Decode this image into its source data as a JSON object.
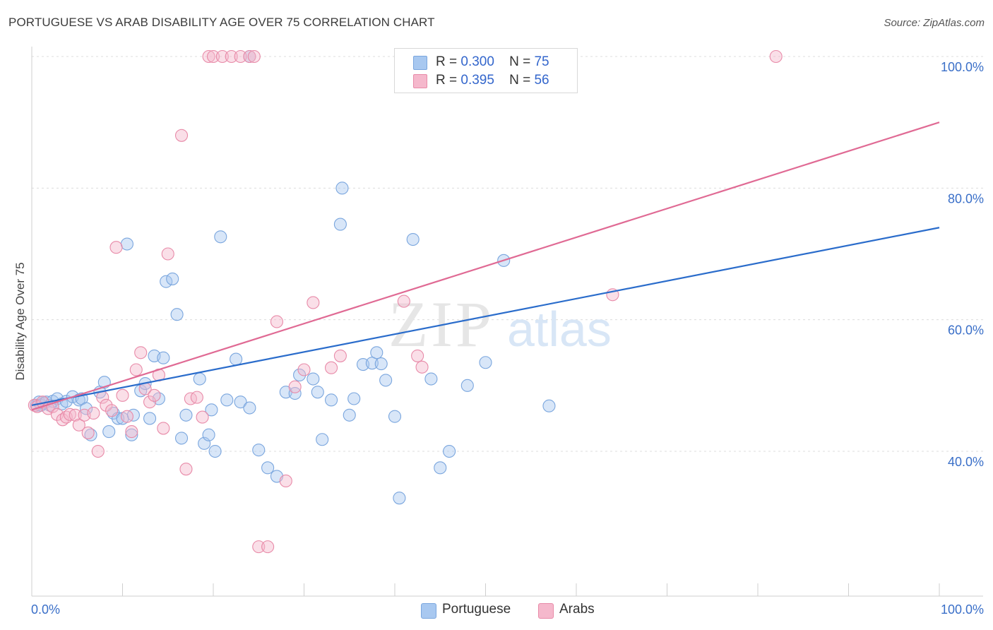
{
  "title": "PORTUGUESE VS ARAB DISABILITY AGE OVER 75 CORRELATION CHART",
  "source": "Source: ZipAtlas.com",
  "watermark": {
    "zip": "ZIP",
    "atlas": "atlas"
  },
  "legend_stats": [
    {
      "r_label": "R =",
      "r_value": "0.300",
      "n_label": "N =",
      "n_value": "75",
      "color": "#a8c8f0",
      "border": "#7aa6de"
    },
    {
      "r_label": "R =",
      "r_value": "0.395",
      "n_label": "N =",
      "n_value": "56",
      "color": "#f5b8cc",
      "border": "#e88aa8"
    }
  ],
  "chart_data": {
    "type": "scatter",
    "title": "PORTUGUESE VS ARAB DISABILITY AGE OVER 75 CORRELATION CHART",
    "xlabel": "",
    "ylabel": "Disability Age Over 75",
    "xlim": [
      0,
      100
    ],
    "ylim": [
      18,
      100
    ],
    "x_tick_labels": [
      "0.0%",
      "100.0%"
    ],
    "y_ticks": [
      40,
      60,
      80,
      100
    ],
    "y_tick_labels": [
      "40.0%",
      "60.0%",
      "80.0%",
      "100.0%"
    ],
    "grid": true,
    "legend": "bottom",
    "series": [
      {
        "name": "Portuguese",
        "color": "#a8c8f0",
        "stroke": "#7aa6de",
        "line_color": "#2a6ccb",
        "trend": {
          "x": [
            0,
            100
          ],
          "y": [
            47.0,
            74.0
          ]
        },
        "points": [
          [
            0.5,
            47
          ],
          [
            0.8,
            47.5
          ],
          [
            1,
            47
          ],
          [
            1.3,
            47.3
          ],
          [
            1.6,
            47.5
          ],
          [
            2,
            47
          ],
          [
            2.3,
            47.6
          ],
          [
            2.8,
            48
          ],
          [
            3.3,
            47.2
          ],
          [
            3.8,
            47.6
          ],
          [
            4.5,
            48.3
          ],
          [
            5.2,
            47.8
          ],
          [
            5.5,
            48
          ],
          [
            6,
            46.5
          ],
          [
            6.5,
            42.5
          ],
          [
            7.5,
            49
          ],
          [
            8,
            50.5
          ],
          [
            8.5,
            43
          ],
          [
            9,
            45.8
          ],
          [
            9.5,
            45
          ],
          [
            10,
            45
          ],
          [
            10.5,
            71.5
          ],
          [
            11,
            42.5
          ],
          [
            11.2,
            45.5
          ],
          [
            12,
            49.2
          ],
          [
            12.5,
            50.3
          ],
          [
            13,
            45
          ],
          [
            13.5,
            54.5
          ],
          [
            14,
            48
          ],
          [
            14.5,
            54.2
          ],
          [
            14.8,
            65.8
          ],
          [
            15.5,
            66.2
          ],
          [
            16,
            60.8
          ],
          [
            16.5,
            42
          ],
          [
            17,
            45.5
          ],
          [
            18.5,
            51
          ],
          [
            19,
            41.2
          ],
          [
            19.5,
            42.5
          ],
          [
            19.8,
            46.3
          ],
          [
            20.2,
            40
          ],
          [
            20.8,
            72.6
          ],
          [
            21.5,
            47.8
          ],
          [
            22.5,
            54
          ],
          [
            23,
            47.5
          ],
          [
            24,
            46.6
          ],
          [
            25,
            40.2
          ],
          [
            26,
            37.5
          ],
          [
            27,
            36.2
          ],
          [
            28,
            49
          ],
          [
            29,
            48.8
          ],
          [
            29.5,
            51.6
          ],
          [
            31,
            51
          ],
          [
            31.5,
            49
          ],
          [
            32,
            41.8
          ],
          [
            33,
            47.8
          ],
          [
            34,
            74.5
          ],
          [
            35,
            45.5
          ],
          [
            35.5,
            48
          ],
          [
            36.5,
            53.2
          ],
          [
            37.5,
            53.4
          ],
          [
            38,
            55
          ],
          [
            38.5,
            53.3
          ],
          [
            39,
            50.8
          ],
          [
            40,
            45.3
          ],
          [
            40.5,
            32.9
          ],
          [
            42,
            72.2
          ],
          [
            44,
            51
          ],
          [
            45,
            37.5
          ],
          [
            46,
            40
          ],
          [
            48,
            50
          ],
          [
            50,
            53.5
          ],
          [
            52,
            69
          ],
          [
            57,
            46.9
          ],
          [
            34.2,
            80
          ],
          [
            24,
            100
          ]
        ]
      },
      {
        "name": "Arabs",
        "color": "#f5b8cc",
        "stroke": "#e88aa8",
        "line_color": "#e06a94",
        "trend": {
          "x": [
            0,
            100
          ],
          "y": [
            46.3,
            90.0
          ]
        },
        "points": [
          [
            0.3,
            47
          ],
          [
            0.6,
            46.8
          ],
          [
            1.2,
            47.5
          ],
          [
            1.8,
            46.5
          ],
          [
            2.3,
            46.8
          ],
          [
            2.8,
            45.6
          ],
          [
            3.4,
            44.8
          ],
          [
            3.8,
            45.2
          ],
          [
            4.2,
            45.6
          ],
          [
            4.8,
            45.5
          ],
          [
            5.2,
            44
          ],
          [
            5.8,
            45.5
          ],
          [
            6.2,
            42.8
          ],
          [
            6.8,
            45.8
          ],
          [
            7.3,
            40
          ],
          [
            7.8,
            48.2
          ],
          [
            8.2,
            47
          ],
          [
            8.8,
            46.2
          ],
          [
            9.3,
            71
          ],
          [
            10,
            48.5
          ],
          [
            10.5,
            45.3
          ],
          [
            11,
            43
          ],
          [
            11.5,
            52.4
          ],
          [
            12,
            55
          ],
          [
            12.5,
            49.5
          ],
          [
            13,
            47.5
          ],
          [
            13.5,
            48.5
          ],
          [
            14,
            51.6
          ],
          [
            14.5,
            43.5
          ],
          [
            15,
            70
          ],
          [
            16.5,
            88
          ],
          [
            17,
            37.3
          ],
          [
            17.5,
            48
          ],
          [
            18.2,
            48.2
          ],
          [
            18.8,
            45.2
          ],
          [
            19.5,
            100
          ],
          [
            20,
            100
          ],
          [
            21,
            100
          ],
          [
            22,
            100
          ],
          [
            23,
            100
          ],
          [
            24,
            100
          ],
          [
            24.5,
            100
          ],
          [
            25,
            25.5
          ],
          [
            26,
            25.5
          ],
          [
            27,
            59.7
          ],
          [
            28,
            35.5
          ],
          [
            29,
            49.8
          ],
          [
            30,
            52.4
          ],
          [
            31,
            62.6
          ],
          [
            33,
            52.7
          ],
          [
            34,
            54.5
          ],
          [
            41,
            62.8
          ],
          [
            42.5,
            54.5
          ],
          [
            43,
            52.8
          ],
          [
            64,
            63.8
          ],
          [
            82,
            100
          ]
        ]
      }
    ]
  }
}
